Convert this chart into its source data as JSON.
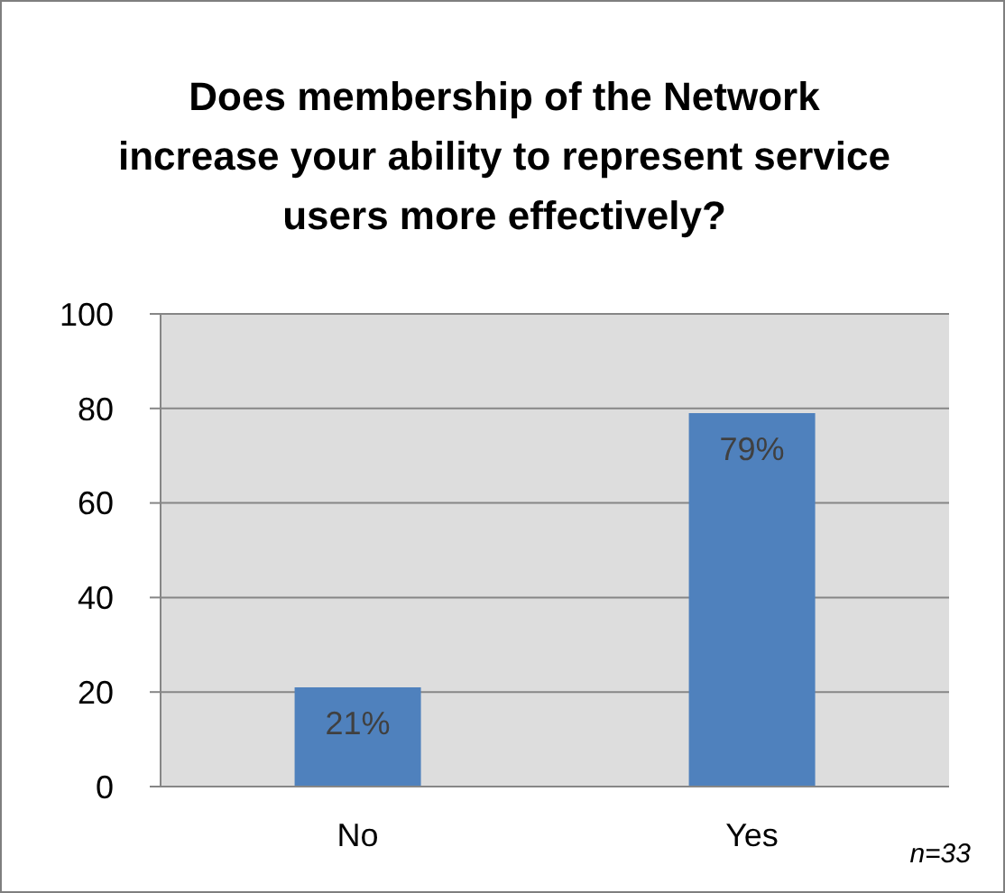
{
  "chart_data": {
    "type": "bar",
    "title": "Does membership of the Network increase your ability to represent service users more effectively?",
    "categories": [
      "No",
      "Yes"
    ],
    "values": [
      21,
      79
    ],
    "color": "#4f81bd",
    "value_labels": [
      "21%",
      "79%"
    ],
    "ylim": [
      0,
      100
    ],
    "yticks": [
      0,
      20,
      40,
      60,
      80,
      100
    ],
    "grid": "y",
    "annotations": [
      "n=33"
    ]
  }
}
